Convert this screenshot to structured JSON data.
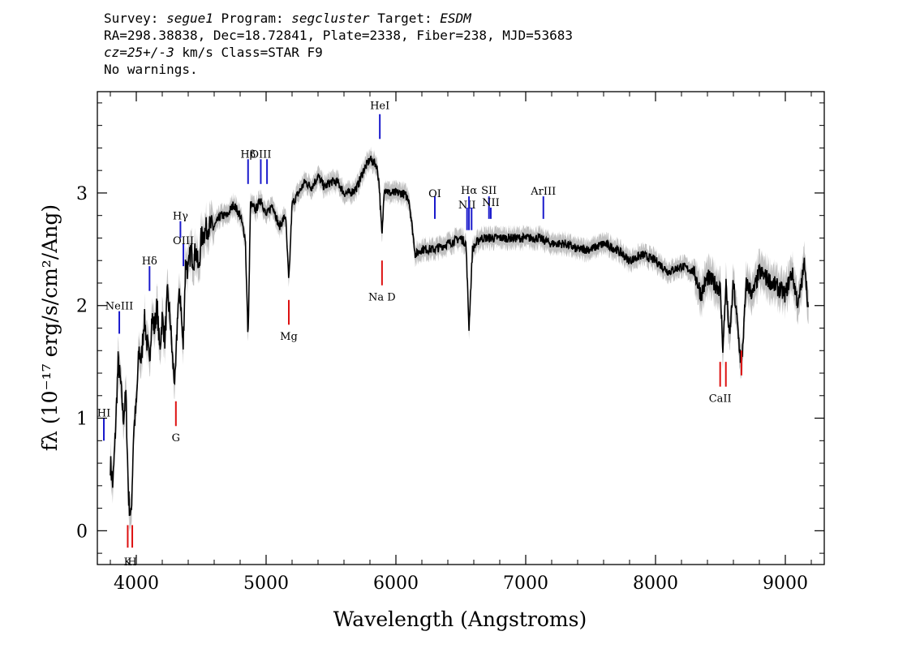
{
  "header": {
    "survey_label": "Survey:",
    "survey": "segue1",
    "program_label": "Program:",
    "program": "segcluster",
    "target_label": "Target:",
    "target": "ESDM",
    "line2": "RA=298.38838, Dec=18.72841, Plate=2338, Fiber=238, MJD=53683",
    "cz_label": "cz=",
    "cz_value": "25+/-3",
    "cz_rest": " km/s Class=STAR F9",
    "line4": "No warnings."
  },
  "colors": {
    "flux": "#000000",
    "error": "#c0c0c0",
    "emission": "#1a1acc",
    "absorption": "#dd1111"
  },
  "chart_data": {
    "type": "line",
    "xlabel": "Wavelength (Angstroms)",
    "ylabel": "fλ (10⁻¹⁷ erg/s/cm²/Ang)",
    "xlim": [
      3700,
      9300
    ],
    "ylim": [
      -0.3,
      3.9
    ],
    "xticks": [
      4000,
      5000,
      6000,
      7000,
      8000,
      9000
    ],
    "yticks": [
      0,
      1,
      2,
      3
    ],
    "grid": false,
    "series": [
      {
        "x": [
          3800,
          3820,
          3840,
          3860,
          3880,
          3900,
          3920,
          3940,
          3960,
          3980,
          4000,
          4020,
          4040,
          4060,
          4080,
          4100,
          4120,
          4140,
          4160,
          4180,
          4200,
          4220,
          4240,
          4260,
          4280,
          4300,
          4320,
          4340,
          4360,
          4380,
          4400,
          4420,
          4440,
          4460,
          4480,
          4500,
          4550,
          4600,
          4650,
          4700,
          4750,
          4800,
          4840,
          4861,
          4880,
          4920,
          4960,
          5000,
          5050,
          5100,
          5150,
          5175,
          5200,
          5250,
          5300,
          5350,
          5400,
          5450,
          5500,
          5550,
          5600,
          5650,
          5700,
          5750,
          5800,
          5850,
          5870,
          5893,
          5910,
          5950,
          6000,
          6050,
          6100,
          6150,
          6200,
          6300,
          6400,
          6500,
          6540,
          6563,
          6590,
          6650,
          6700,
          6800,
          6900,
          7000,
          7100,
          7200,
          7300,
          7400,
          7500,
          7600,
          7700,
          7800,
          7900,
          8000,
          8100,
          8200,
          8300,
          8350,
          8400,
          8450,
          8498,
          8520,
          8542,
          8570,
          8600,
          8662,
          8700,
          8750,
          8800,
          8900,
          9000,
          9050,
          9100,
          9150,
          9180
        ],
        "flux": [
          0.6,
          0.4,
          0.9,
          1.5,
          1.3,
          1.0,
          1.2,
          0.3,
          0.1,
          0.9,
          1.1,
          1.6,
          1.5,
          1.9,
          1.7,
          1.5,
          1.9,
          1.8,
          2.0,
          1.6,
          1.9,
          1.7,
          2.1,
          1.9,
          1.5,
          1.3,
          2.0,
          2.1,
          1.6,
          2.4,
          2.3,
          2.5,
          2.4,
          2.5,
          2.3,
          2.6,
          2.7,
          2.7,
          2.8,
          2.8,
          2.9,
          2.8,
          2.6,
          1.7,
          2.9,
          2.85,
          2.95,
          2.8,
          2.9,
          2.7,
          2.8,
          2.2,
          2.9,
          3.0,
          3.1,
          3.05,
          3.15,
          3.05,
          3.1,
          3.1,
          3.0,
          3.0,
          3.05,
          3.2,
          3.3,
          3.25,
          3.1,
          2.6,
          3.05,
          3.0,
          3.0,
          3.0,
          2.95,
          2.45,
          2.5,
          2.5,
          2.55,
          2.6,
          2.55,
          1.8,
          2.5,
          2.6,
          2.6,
          2.6,
          2.6,
          2.6,
          2.6,
          2.55,
          2.55,
          2.5,
          2.5,
          2.55,
          2.5,
          2.4,
          2.45,
          2.4,
          2.3,
          2.35,
          2.3,
          2.1,
          2.25,
          2.2,
          2.15,
          1.6,
          2.2,
          1.7,
          2.2,
          1.45,
          2.2,
          2.1,
          2.3,
          2.2,
          2.1,
          2.3,
          2.0,
          2.4,
          1.9
        ]
      }
    ],
    "line_labels": [
      {
        "name": "H I",
        "label": "HI",
        "x": 3750,
        "type": "emission",
        "tick_top": 1.0,
        "tick_bottom": 0.8,
        "label_y": 1.05
      },
      {
        "name": "Ne III",
        "label": "NeIII",
        "x": 3869,
        "type": "emission",
        "tick_top": 1.95,
        "tick_bottom": 1.75,
        "label_y": 2.0
      },
      {
        "name": "H delta",
        "label": "Hδ",
        "x": 4102,
        "type": "emission",
        "tick_top": 2.35,
        "tick_bottom": 2.13,
        "label_y": 2.4
      },
      {
        "name": "H gamma",
        "label": "Hγ",
        "x": 4340,
        "type": "emission",
        "tick_top": 2.75,
        "tick_bottom": 2.6,
        "label_y": 2.8
      },
      {
        "name": "O III 4363",
        "label": "OIII",
        "x": 4363,
        "type": "emission",
        "tick_top": 2.55,
        "tick_bottom": 2.35,
        "label_y": 2.58
      },
      {
        "name": "H beta",
        "label": "Hβ",
        "x": 4861,
        "type": "emission",
        "tick_top": 3.3,
        "tick_bottom": 3.08,
        "label_y": 3.35
      },
      {
        "name": "O III 4959",
        "label": "OIII",
        "x": 4959,
        "type": "emission",
        "tick_top": 3.3,
        "tick_bottom": 3.08,
        "label_y": 3.35
      },
      {
        "name": "O III 5007",
        "label": "",
        "x": 5007,
        "type": "emission",
        "tick_top": 3.3,
        "tick_bottom": 3.08,
        "label_y": 3.35
      },
      {
        "name": "He I",
        "label": "HeI",
        "x": 5876,
        "type": "emission",
        "tick_top": 3.7,
        "tick_bottom": 3.48,
        "label_y": 3.78
      },
      {
        "name": "O I",
        "label": "OI",
        "x": 6300,
        "type": "emission",
        "tick_top": 2.97,
        "tick_bottom": 2.77,
        "label_y": 3.0
      },
      {
        "name": "N II 6548",
        "label": "NII",
        "x": 6548,
        "type": "emission",
        "tick_top": 2.87,
        "tick_bottom": 2.67,
        "label_y": 2.9
      },
      {
        "name": "H alpha",
        "label": "Hα",
        "x": 6563,
        "type": "emission",
        "tick_top": 2.97,
        "tick_bottom": 2.67,
        "label_y": 3.03
      },
      {
        "name": "N II 6583",
        "label": "",
        "x": 6583,
        "type": "emission",
        "tick_top": 2.87,
        "tick_bottom": 2.67,
        "label_y": 2.9
      },
      {
        "name": "S II",
        "label": "SII",
        "x": 6717,
        "type": "emission",
        "tick_top": 2.97,
        "tick_bottom": 2.77,
        "label_y": 3.03
      },
      {
        "name": "N II",
        "label": "NII",
        "x": 6731,
        "type": "emission",
        "tick_top": 2.87,
        "tick_bottom": 2.77,
        "label_y": 2.92
      },
      {
        "name": "Ar III",
        "label": "ArIII",
        "x": 7136,
        "type": "emission",
        "tick_top": 2.97,
        "tick_bottom": 2.77,
        "label_y": 3.02
      },
      {
        "name": "Ca K",
        "label": "K",
        "x": 3934,
        "type": "absorption",
        "tick_top": 0.05,
        "tick_bottom": -0.15,
        "label_y": -0.27
      },
      {
        "name": "Ca H",
        "label": "H",
        "x": 3969,
        "type": "absorption",
        "tick_top": 0.05,
        "tick_bottom": -0.15,
        "label_y": -0.27
      },
      {
        "name": "G band",
        "label": "G",
        "x": 4305,
        "type": "absorption",
        "tick_top": 1.15,
        "tick_bottom": 0.93,
        "label_y": 0.83
      },
      {
        "name": "Mg",
        "label": "Mg",
        "x": 5175,
        "type": "absorption",
        "tick_top": 2.05,
        "tick_bottom": 1.83,
        "label_y": 1.73
      },
      {
        "name": "Na D",
        "label": "Na D",
        "x": 5893,
        "type": "absorption",
        "tick_top": 2.4,
        "tick_bottom": 2.18,
        "label_y": 2.08
      },
      {
        "name": "Ca II 8498",
        "label": "CaII",
        "x": 8498,
        "type": "absorption",
        "tick_top": 1.5,
        "tick_bottom": 1.28,
        "label_y": 1.18
      },
      {
        "name": "Ca II 8542",
        "label": "",
        "x": 8542,
        "type": "absorption",
        "tick_top": 1.5,
        "tick_bottom": 1.28,
        "label_y": 1.18
      },
      {
        "name": "Ca II 8662",
        "label": "",
        "x": 8662,
        "type": "absorption",
        "tick_top": 1.6,
        "tick_bottom": 1.38,
        "label_y": 1.28
      }
    ]
  }
}
